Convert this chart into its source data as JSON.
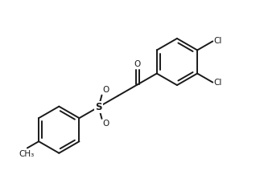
{
  "bg_color": "#ffffff",
  "line_color": "#1a1a1a",
  "line_width": 1.4,
  "text_color": "#1a1a1a",
  "font_size": 7.5,
  "figsize": [
    3.23,
    2.33
  ],
  "dpi": 100,
  "xlim": [
    0,
    10
  ],
  "ylim": [
    0,
    7.2
  ]
}
